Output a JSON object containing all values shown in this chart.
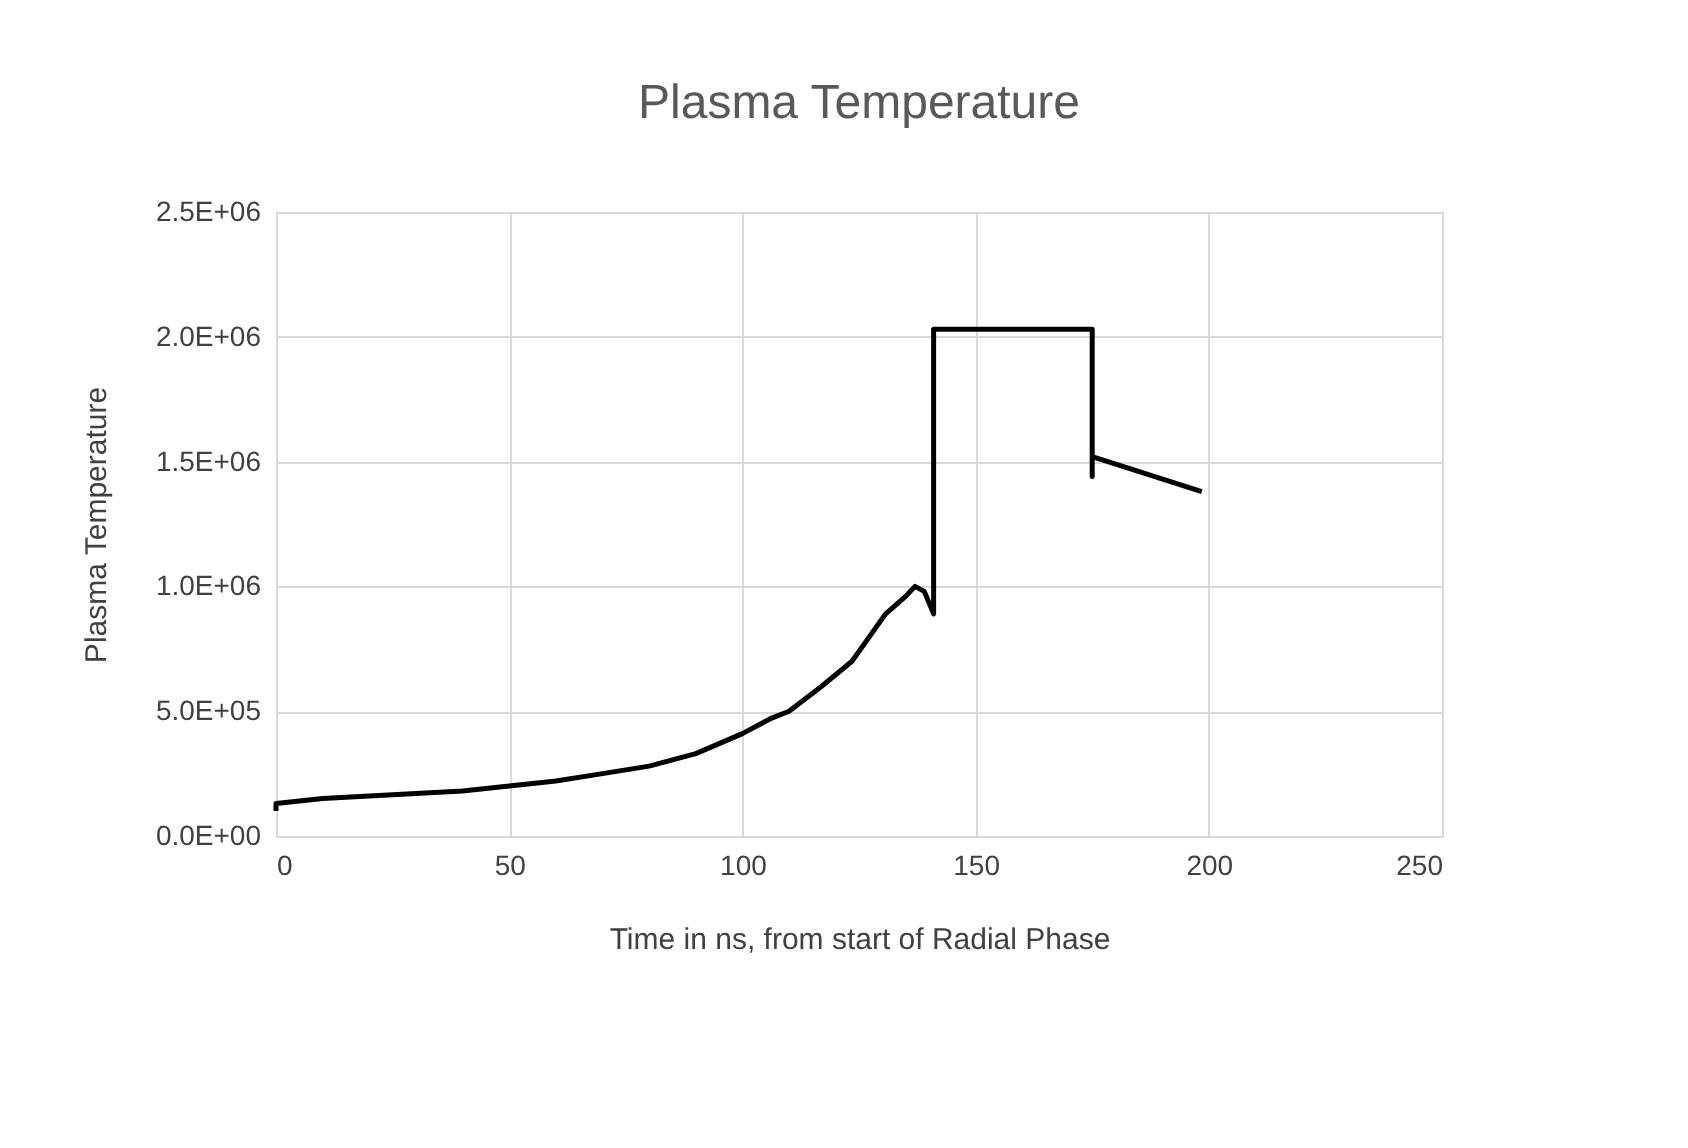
{
  "chart_data": {
    "type": "line",
    "title": "Plasma Temperature",
    "xlabel": "Time in ns, from start of Radial Phase",
    "ylabel": "Plasma Temperature",
    "x": [
      0,
      0,
      10,
      20,
      30,
      40,
      50,
      60,
      70,
      80,
      90,
      100,
      106,
      110,
      117,
      123.5,
      130.7,
      135,
      137,
      139,
      141,
      141,
      175,
      175,
      175,
      198.5
    ],
    "series": [
      {
        "color": "#000000",
        "values": [
          100000,
          130000,
          150000,
          160000,
          170000,
          180000,
          200000,
          220000,
          250000,
          280000,
          330000,
          410000,
          470000,
          500000,
          600000,
          700000,
          890000,
          960000,
          1000000,
          980000,
          890000,
          2030000,
          2030000,
          1440000,
          1520000,
          1380000
        ]
      }
    ],
    "xlim": [
      0,
      250
    ],
    "xticks": [
      0,
      50,
      100,
      150,
      200,
      250
    ],
    "ylim": [
      0,
      2500000
    ],
    "yticks": [
      {
        "value": 0,
        "label": "0.0E+00"
      },
      {
        "value": 500000,
        "label": "5.0E+05"
      },
      {
        "value": 1000000,
        "label": "1.0E+06"
      },
      {
        "value": 1500000,
        "label": "1.5E+06"
      },
      {
        "value": 2000000,
        "label": "2.0E+06"
      },
      {
        "value": 2500000,
        "label": "2.5E+06"
      }
    ],
    "grid": true,
    "legend": false,
    "marker": "none",
    "line_style": "solid"
  }
}
